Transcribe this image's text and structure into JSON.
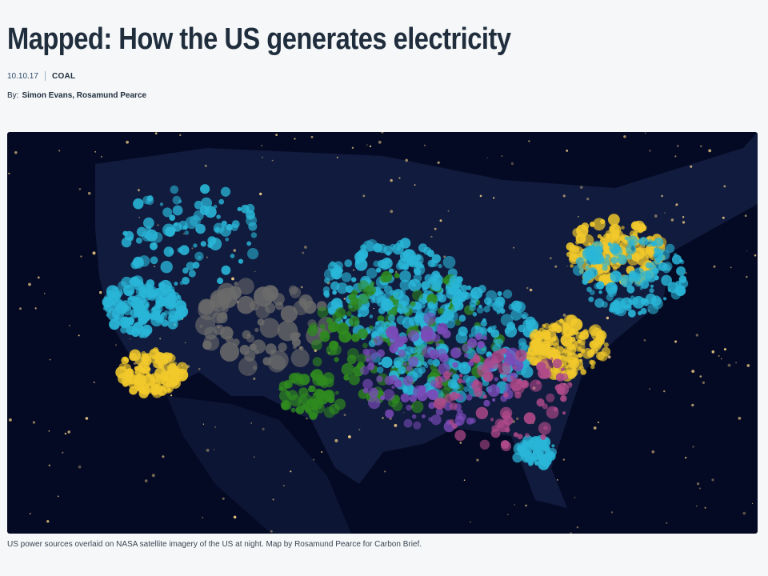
{
  "article": {
    "title": "Mapped: How the US generates electricity",
    "date": "10.10.17",
    "category": "COAL",
    "byline_label": "By:",
    "authors": "Simon Evans, Rosamund Pearce"
  },
  "figure": {
    "caption": "US power sources overlaid on NASA satellite imagery of the US at night. Map by Rosamund Pearce for Carbon Brief.",
    "colors": {
      "background": "#050a24",
      "land": "#1b2a52",
      "city_lights": "#ffd98a",
      "blue_plants": "#29b6d8",
      "yellow_plants": "#f2c92b",
      "green_plants": "#2f8a1f",
      "grey_plants": "#6b6b6b",
      "pink_plants": "#b04a8a",
      "purple_plants": "#7a4bb8"
    }
  }
}
